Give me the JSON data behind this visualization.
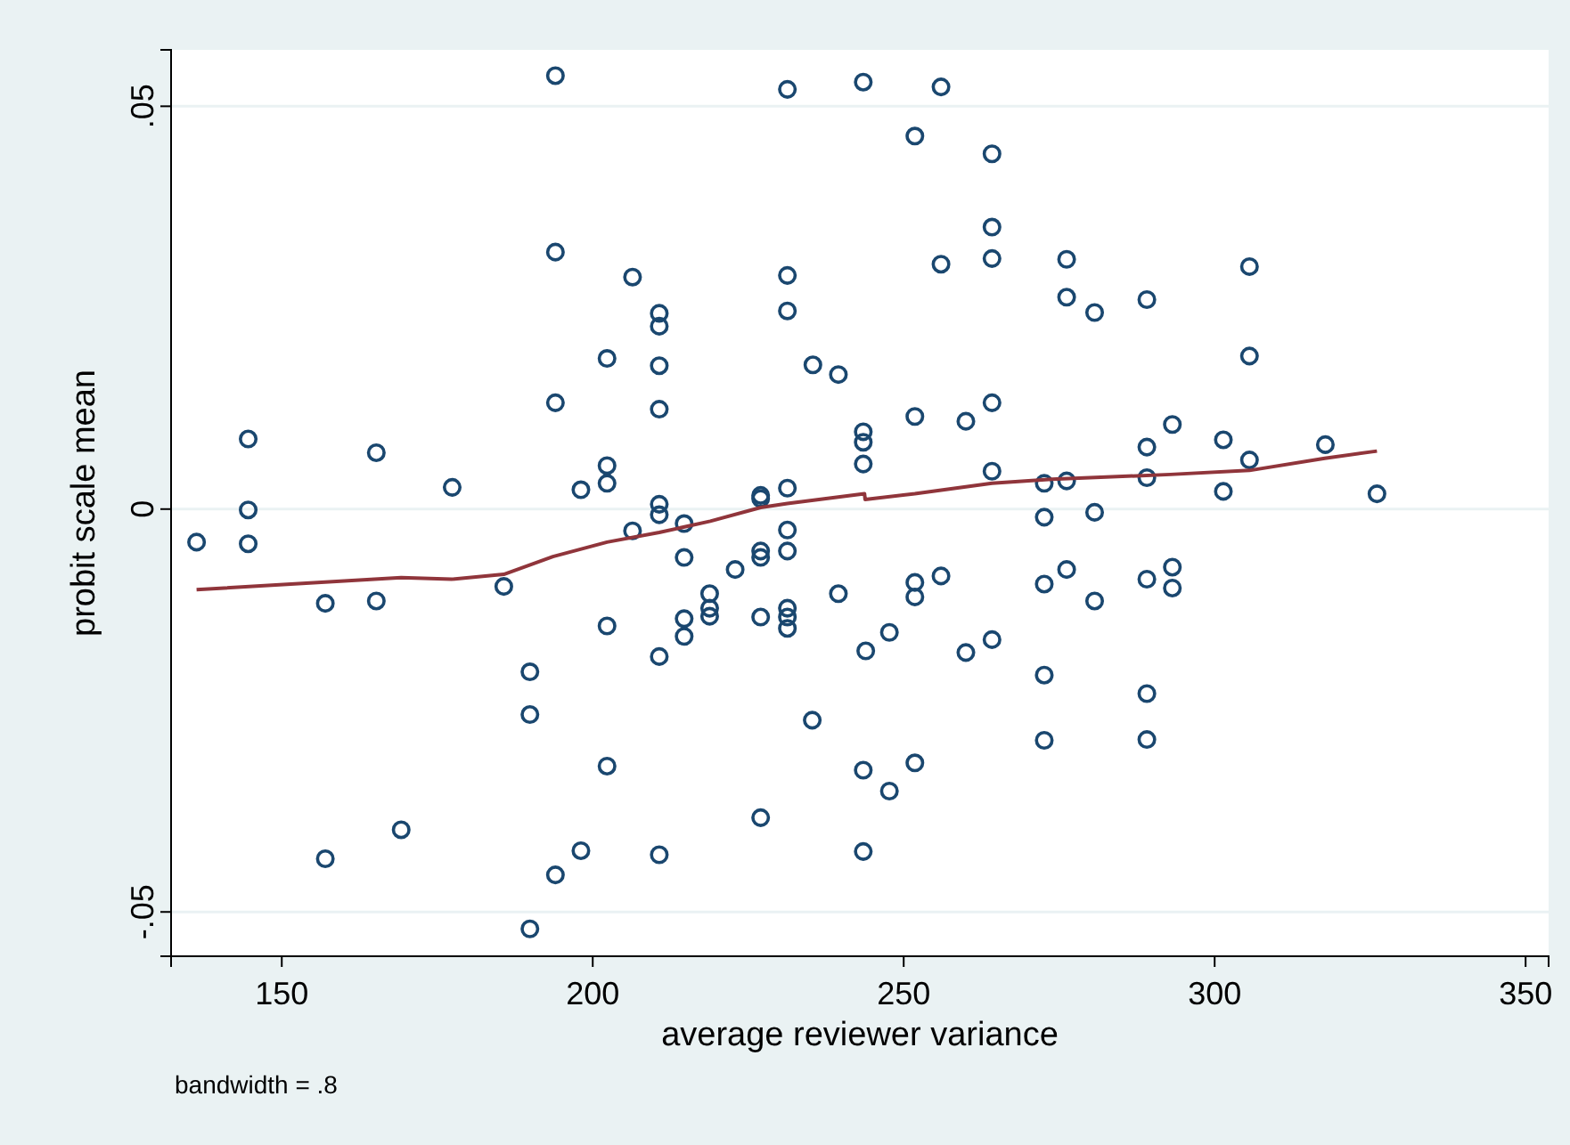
{
  "chart_data": {
    "type": "scatter",
    "xlabel": "average reviewer variance",
    "ylabel": "probit scale mean",
    "annotations": [
      "bandwidth = .8"
    ],
    "xlim": [
      132.2,
      353.7
    ],
    "ylim": [
      -0.0555,
      0.057
    ],
    "xticks": [
      150,
      200,
      250,
      300,
      350
    ],
    "yticks": [
      {
        "value": -0.05,
        "label": "-.05"
      },
      0,
      {
        "value": 0.05,
        "label": ".05"
      }
    ],
    "grid": "y",
    "marker": "circle",
    "series": [
      {
        "color": "#1a476f",
        "x": [
          194.0,
          194.0,
          202.3,
          194.0,
          144.6,
          165.2,
          177.4,
          198.1,
          202.3,
          202.3,
          206.4,
          231.3,
          243.5,
          256.0,
          251.8,
          264.2,
          264.2,
          264.2,
          256.0,
          276.2,
          276.2,
          210.7,
          210.7,
          210.7,
          210.7,
          231.3,
          231.3,
          235.4,
          239.5,
          243.5,
          243.5,
          243.5,
          251.8,
          260.0,
          264.2,
          264.2,
          272.6,
          276.2,
          227.0,
          231.3,
          280.7,
          289.1,
          305.6,
          305.6,
          293.2,
          289.1,
          301.4,
          317.8,
          305.6,
          289.1,
          301.4,
          326.1,
          144.6,
          136.3,
          144.6,
          157.0,
          165.2,
          185.7,
          202.3,
          189.9,
          189.9,
          202.3,
          169.2,
          157.0,
          198.1,
          194.0,
          189.9,
          210.7,
          210.7,
          206.4,
          214.7,
          227.0,
          231.3,
          214.7,
          222.9,
          227.0,
          227.0,
          231.3,
          218.8,
          218.8,
          218.8,
          214.7,
          214.7,
          227.0,
          231.3,
          231.3,
          231.3,
          239.5,
          251.8,
          251.8,
          256.0,
          243.9,
          247.7,
          210.7,
          272.6,
          272.6,
          276.2,
          260.0,
          264.2,
          272.6,
          235.3,
          243.5,
          247.7,
          251.8,
          272.6,
          227.0,
          210.7,
          243.5,
          280.7,
          280.7,
          289.1,
          293.2,
          293.2,
          289.1,
          289.1
        ],
        "values": [
          0.0538,
          0.0319,
          0.0187,
          0.0132,
          0.0087,
          0.007,
          0.0027,
          0.0024,
          0.0054,
          0.0032,
          0.0288,
          0.0521,
          0.053,
          0.0524,
          0.0463,
          0.0441,
          0.035,
          0.0311,
          0.0304,
          0.031,
          0.0263,
          0.0243,
          0.0227,
          0.0178,
          0.0124,
          0.029,
          0.0246,
          0.0179,
          0.0167,
          0.0096,
          0.0083,
          0.0056,
          0.0115,
          0.0109,
          0.0132,
          0.0047,
          0.0032,
          0.0035,
          0.0017,
          0.0026,
          0.0244,
          0.026,
          0.0301,
          0.019,
          0.0105,
          0.0077,
          0.0086,
          0.008,
          0.0061,
          0.0039,
          0.0022,
          0.0019,
          -0.0001,
          -0.0041,
          -0.0043,
          -0.0117,
          -0.0114,
          -0.0096,
          -0.0145,
          -0.0202,
          -0.0255,
          -0.0319,
          -0.0398,
          -0.0434,
          -0.0424,
          -0.0454,
          -0.0521,
          0.0006,
          -0.0007,
          -0.0027,
          -0.0018,
          0.0013,
          -0.0026,
          -0.006,
          -0.0075,
          -0.0052,
          -0.006,
          -0.0052,
          -0.0105,
          -0.0123,
          -0.0133,
          -0.0136,
          -0.0158,
          -0.0134,
          -0.0123,
          -0.0134,
          -0.0148,
          -0.0105,
          -0.0091,
          -0.0109,
          -0.0083,
          -0.0176,
          -0.0153,
          -0.0183,
          -0.001,
          -0.0093,
          -0.0075,
          -0.0178,
          -0.0162,
          -0.0206,
          -0.0262,
          -0.0324,
          -0.035,
          -0.0315,
          -0.0287,
          -0.0383,
          -0.0429,
          -0.0425,
          -0.0004,
          -0.0114,
          -0.0087,
          -0.0072,
          -0.0098,
          -0.0229,
          -0.0286
        ]
      },
      {
        "type": "line",
        "color": "#90353b",
        "marker": "none",
        "x": [
          136.3,
          169.2,
          177.3,
          185.7,
          193.6,
          202.3,
          210.7,
          218.9,
          227.0,
          231.3,
          243.7,
          243.8,
          251.8,
          264.2,
          273.8,
          292.9,
          305.6,
          317.7,
          326.1
        ],
        "values": [
          -0.01,
          -0.0085,
          -0.0087,
          -0.0081,
          -0.0059,
          -0.0041,
          -0.0029,
          -0.0015,
          0.0002,
          0.0007,
          0.0019,
          0.0012,
          0.0019,
          0.0032,
          0.0037,
          0.0043,
          0.0048,
          0.0063,
          0.0072
        ]
      }
    ]
  }
}
